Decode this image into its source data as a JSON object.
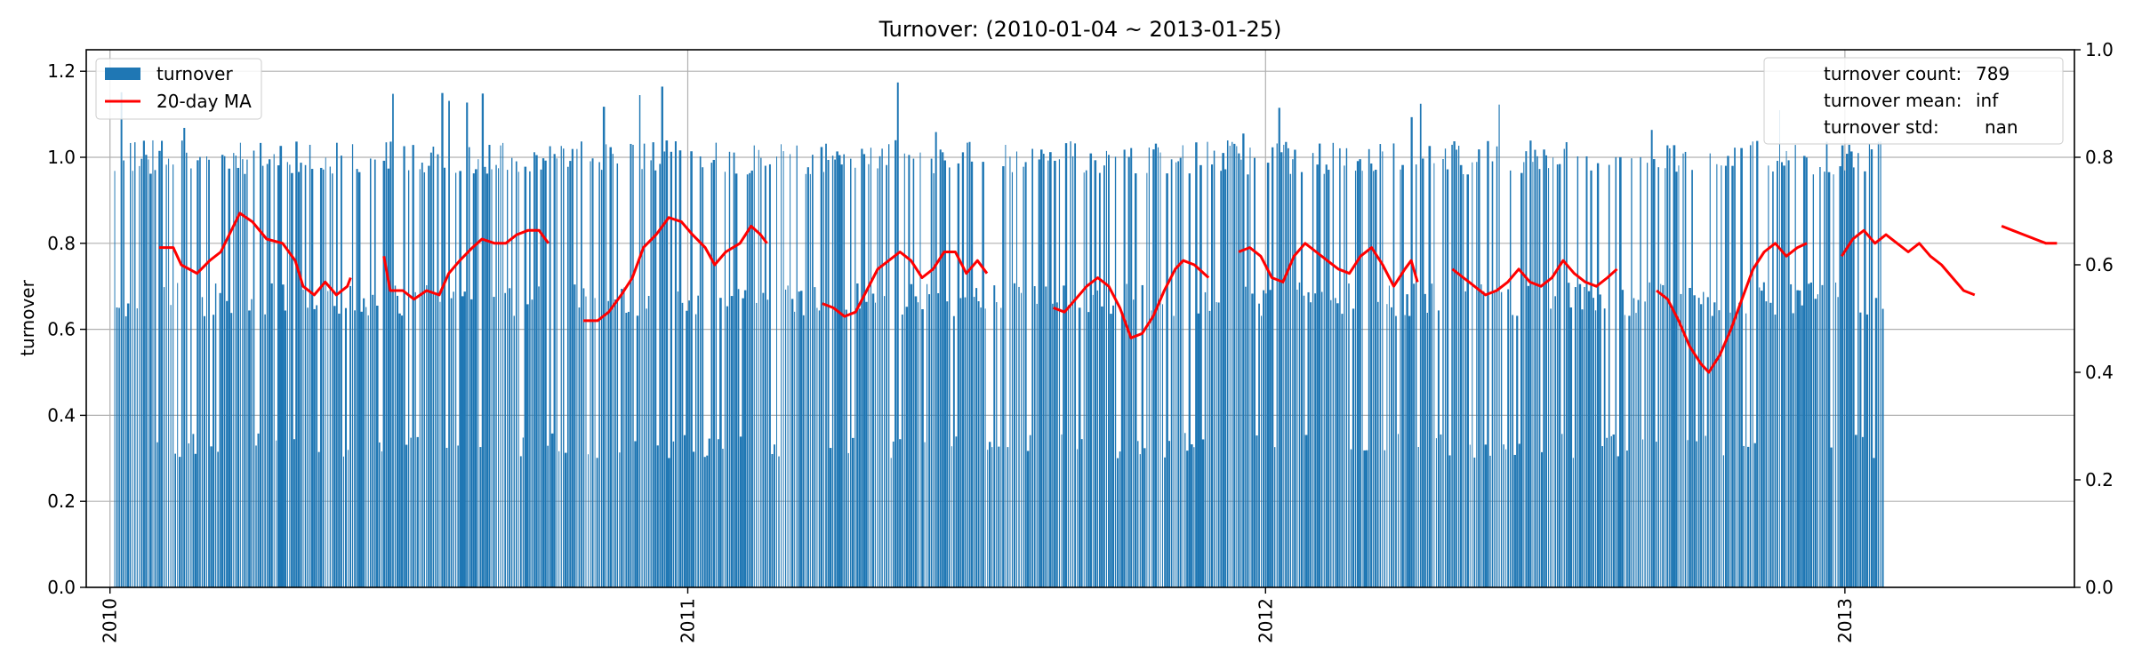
{
  "chart_data": {
    "type": "bar",
    "title": "Turnover: (2010-01-04 ~ 2013-01-25)",
    "ylabel": "turnover",
    "xlabel": "",
    "x_range": [
      "2009-12-17",
      "2013-05-26"
    ],
    "ylim": [
      0,
      1.25
    ],
    "yticks": [
      "0.0",
      "0.2",
      "0.4",
      "0.6",
      "0.8",
      "1.0",
      "1.2"
    ],
    "xticks": [
      {
        "date": "2010-01-01",
        "label": "2010"
      },
      {
        "date": "2011-01-01",
        "label": "2011"
      },
      {
        "date": "2012-01-01",
        "label": "2012"
      },
      {
        "date": "2013-01-01",
        "label": "2013"
      }
    ],
    "right_ylim": [
      0,
      1
    ],
    "right_yticks": [
      "0.0",
      "0.2",
      "0.4",
      "0.6",
      "0.8",
      "1.0"
    ],
    "grid": true,
    "legend": {
      "position": "top-left",
      "entries": [
        {
          "label": "turnover",
          "color": "#1f77b4",
          "kind": "bar"
        },
        {
          "label": "20-day MA",
          "color": "#ff0000",
          "kind": "line"
        }
      ]
    },
    "stats_box": {
      "position": "top-right",
      "lines": [
        {
          "label": "turnover count:",
          "value": "789"
        },
        {
          "label": "turnover mean:",
          "value": "inf"
        },
        {
          "label": "turnover std:",
          "value": "nan"
        }
      ]
    },
    "series": [
      {
        "name": "turnover",
        "kind": "bar",
        "color": "#1f77b4",
        "start": "2010-01-04",
        "end": "2013-01-25",
        "count": 789,
        "typical_levels": [
          1.0,
          0.67,
          0.33
        ],
        "max": 1.2
      },
      {
        "name": "20-day MA",
        "kind": "line",
        "color": "#ff0000",
        "segments": [
          [
            [
              "2010-02-01",
              0.79
            ],
            [
              "2010-02-10",
              0.79
            ],
            [
              "2010-02-15",
              0.75
            ],
            [
              "2010-02-25",
              0.73
            ],
            [
              "2010-03-05",
              0.76
            ],
            [
              "2010-03-12",
              0.78
            ],
            [
              "2010-03-20",
              0.84
            ],
            [
              "2010-03-24",
              0.87
            ],
            [
              "2010-04-01",
              0.85
            ],
            [
              "2010-04-10",
              0.81
            ],
            [
              "2010-04-20",
              0.8
            ],
            [
              "2010-04-28",
              0.76
            ],
            [
              "2010-05-03",
              0.7
            ],
            [
              "2010-05-10",
              0.68
            ],
            [
              "2010-05-17",
              0.71
            ],
            [
              "2010-05-24",
              0.68
            ],
            [
              "2010-05-31",
              0.7
            ],
            [
              "2010-06-02",
              0.72
            ]
          ],
          [
            [
              "2010-06-23",
              0.77
            ],
            [
              "2010-06-27",
              0.69
            ],
            [
              "2010-07-05",
              0.69
            ],
            [
              "2010-07-12",
              0.67
            ],
            [
              "2010-07-20",
              0.69
            ],
            [
              "2010-07-28",
              0.68
            ],
            [
              "2010-08-03",
              0.73
            ],
            [
              "2010-08-10",
              0.76
            ],
            [
              "2010-08-18",
              0.79
            ],
            [
              "2010-08-24",
              0.81
            ],
            [
              "2010-09-01",
              0.8
            ],
            [
              "2010-09-08",
              0.8
            ],
            [
              "2010-09-15",
              0.82
            ],
            [
              "2010-09-22",
              0.83
            ],
            [
              "2010-09-29",
              0.83
            ],
            [
              "2010-10-05",
              0.8
            ]
          ],
          [
            [
              "2010-10-27",
              0.62
            ],
            [
              "2010-11-05",
              0.62
            ],
            [
              "2010-11-12",
              0.64
            ],
            [
              "2010-11-20",
              0.68
            ],
            [
              "2010-11-27",
              0.72
            ],
            [
              "2010-12-04",
              0.79
            ],
            [
              "2010-12-12",
              0.82
            ],
            [
              "2010-12-20",
              0.86
            ],
            [
              "2010-12-28",
              0.85
            ],
            [
              "2011-01-04",
              0.82
            ],
            [
              "2011-01-12",
              0.79
            ],
            [
              "2011-01-18",
              0.75
            ],
            [
              "2011-01-25",
              0.78
            ],
            [
              "2011-02-03",
              0.8
            ],
            [
              "2011-02-10",
              0.84
            ],
            [
              "2011-02-16",
              0.82
            ],
            [
              "2011-02-20",
              0.8
            ]
          ],
          [
            [
              "2011-03-27",
              0.66
            ],
            [
              "2011-04-03",
              0.65
            ],
            [
              "2011-04-10",
              0.63
            ],
            [
              "2011-04-17",
              0.64
            ],
            [
              "2011-04-24",
              0.69
            ],
            [
              "2011-05-01",
              0.74
            ],
            [
              "2011-05-08",
              0.76
            ],
            [
              "2011-05-15",
              0.78
            ],
            [
              "2011-05-22",
              0.76
            ],
            [
              "2011-05-29",
              0.72
            ],
            [
              "2011-06-05",
              0.74
            ],
            [
              "2011-06-12",
              0.78
            ],
            [
              "2011-06-19",
              0.78
            ],
            [
              "2011-06-26",
              0.73
            ],
            [
              "2011-07-03",
              0.76
            ],
            [
              "2011-07-09",
              0.73
            ]
          ],
          [
            [
              "2011-08-20",
              0.65
            ],
            [
              "2011-08-27",
              0.64
            ],
            [
              "2011-09-03",
              0.67
            ],
            [
              "2011-09-10",
              0.7
            ],
            [
              "2011-09-17",
              0.72
            ],
            [
              "2011-09-24",
              0.7
            ],
            [
              "2011-10-01",
              0.65
            ],
            [
              "2011-10-08",
              0.58
            ],
            [
              "2011-10-15",
              0.59
            ],
            [
              "2011-10-22",
              0.63
            ],
            [
              "2011-10-29",
              0.69
            ],
            [
              "2011-11-05",
              0.74
            ],
            [
              "2011-11-10",
              0.76
            ],
            [
              "2011-11-17",
              0.75
            ],
            [
              "2011-11-26",
              0.72
            ]
          ],
          [
            [
              "2011-12-15",
              0.78
            ],
            [
              "2011-12-22",
              0.79
            ],
            [
              "2011-12-29",
              0.77
            ],
            [
              "2012-01-05",
              0.72
            ],
            [
              "2012-01-12",
              0.71
            ],
            [
              "2012-01-19",
              0.77
            ],
            [
              "2012-01-26",
              0.8
            ],
            [
              "2012-02-02",
              0.78
            ],
            [
              "2012-02-09",
              0.76
            ],
            [
              "2012-02-16",
              0.74
            ],
            [
              "2012-02-23",
              0.73
            ],
            [
              "2012-03-01",
              0.77
            ],
            [
              "2012-03-08",
              0.79
            ],
            [
              "2012-03-15",
              0.75
            ],
            [
              "2012-03-22",
              0.7
            ],
            [
              "2012-03-29",
              0.74
            ],
            [
              "2012-04-02",
              0.76
            ],
            [
              "2012-04-06",
              0.71
            ]
          ],
          [
            [
              "2012-04-28",
              0.74
            ],
            [
              "2012-05-05",
              0.72
            ],
            [
              "2012-05-12",
              0.7
            ],
            [
              "2012-05-19",
              0.68
            ],
            [
              "2012-05-26",
              0.69
            ],
            [
              "2012-06-02",
              0.71
            ],
            [
              "2012-06-09",
              0.74
            ],
            [
              "2012-06-16",
              0.71
            ],
            [
              "2012-06-23",
              0.7
            ],
            [
              "2012-06-30",
              0.72
            ],
            [
              "2012-07-07",
              0.76
            ],
            [
              "2012-07-14",
              0.73
            ],
            [
              "2012-07-21",
              0.71
            ],
            [
              "2012-07-28",
              0.7
            ],
            [
              "2012-08-04",
              0.72
            ],
            [
              "2012-08-10",
              0.74
            ]
          ],
          [
            [
              "2012-09-04",
              0.69
            ],
            [
              "2012-09-11",
              0.67
            ],
            [
              "2012-09-18",
              0.62
            ],
            [
              "2012-09-25",
              0.56
            ],
            [
              "2012-10-02",
              0.52
            ],
            [
              "2012-10-07",
              0.5
            ],
            [
              "2012-10-14",
              0.54
            ],
            [
              "2012-10-21",
              0.6
            ],
            [
              "2012-10-28",
              0.67
            ],
            [
              "2012-11-04",
              0.74
            ],
            [
              "2012-11-11",
              0.78
            ],
            [
              "2012-11-18",
              0.8
            ],
            [
              "2012-11-25",
              0.77
            ],
            [
              "2012-12-02",
              0.79
            ],
            [
              "2012-12-08",
              0.8
            ]
          ],
          [
            [
              "2012-12-30",
              0.77
            ],
            [
              "2013-01-06",
              0.81
            ],
            [
              "2013-01-13",
              0.83
            ],
            [
              "2013-01-20",
              0.8
            ],
            [
              "2013-01-27",
              0.82
            ],
            [
              "2013-02-03",
              0.8
            ],
            [
              "2013-02-10",
              0.78
            ],
            [
              "2013-02-17",
              0.8
            ],
            [
              "2013-02-24",
              0.77
            ],
            [
              "2013-03-03",
              0.75
            ],
            [
              "2013-03-10",
              0.72
            ],
            [
              "2013-03-17",
              0.69
            ],
            [
              "2013-03-24",
              0.68
            ]
          ],
          [
            [
              "2013-04-10",
              0.84
            ],
            [
              "2013-04-17",
              0.83
            ],
            [
              "2013-04-24",
              0.82
            ],
            [
              "2013-05-01",
              0.81
            ],
            [
              "2013-05-08",
              0.8
            ],
            [
              "2013-05-15",
              0.8
            ]
          ]
        ]
      }
    ]
  }
}
